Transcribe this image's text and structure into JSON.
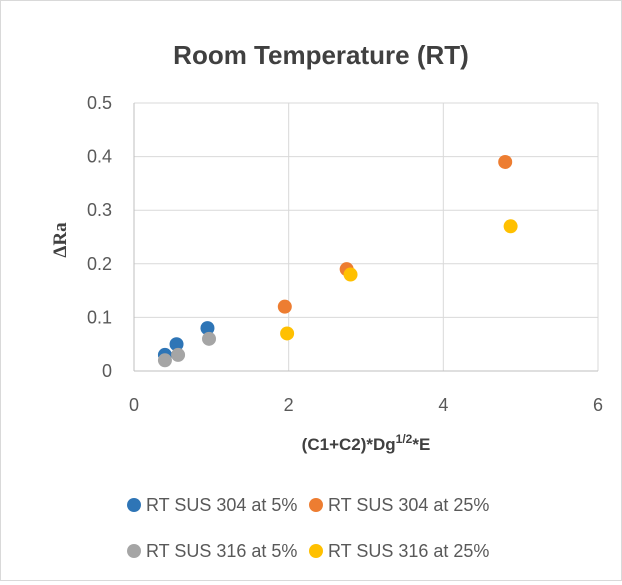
{
  "chart_data": {
    "type": "scatter",
    "title": "Room Temperature (RT)",
    "xlabel_main": "(C1+C2)*Dg",
    "xlabel_sup": "1/2",
    "xlabel_tail": "*E",
    "ylabel": "ΔRa",
    "xlim": [
      0,
      6
    ],
    "ylim": [
      0,
      0.5
    ],
    "x_ticks": [
      "0",
      "2",
      "4",
      "6"
    ],
    "y_ticks": [
      "0",
      "0.1",
      "0.2",
      "0.3",
      "0.4",
      "0.5"
    ],
    "grid": true,
    "legend_position": "bottom",
    "series": [
      {
        "name": "RT SUS 304 at 5%",
        "color": "#2e75b6",
        "points": [
          [
            0.4,
            0.03
          ],
          [
            0.55,
            0.05
          ],
          [
            0.95,
            0.08
          ]
        ]
      },
      {
        "name": "RT SUS 304 at 25%",
        "color": "#ed7d31",
        "points": [
          [
            1.95,
            0.12
          ],
          [
            2.75,
            0.19
          ],
          [
            4.8,
            0.39
          ]
        ]
      },
      {
        "name": "RT SUS 316 at 5%",
        "color": "#a5a5a5",
        "points": [
          [
            0.4,
            0.02
          ],
          [
            0.57,
            0.03
          ],
          [
            0.97,
            0.06
          ]
        ]
      },
      {
        "name": "RT SUS 316 at 25%",
        "color": "#ffc000",
        "points": [
          [
            1.98,
            0.07
          ],
          [
            2.8,
            0.18
          ],
          [
            4.87,
            0.27
          ]
        ]
      }
    ]
  }
}
